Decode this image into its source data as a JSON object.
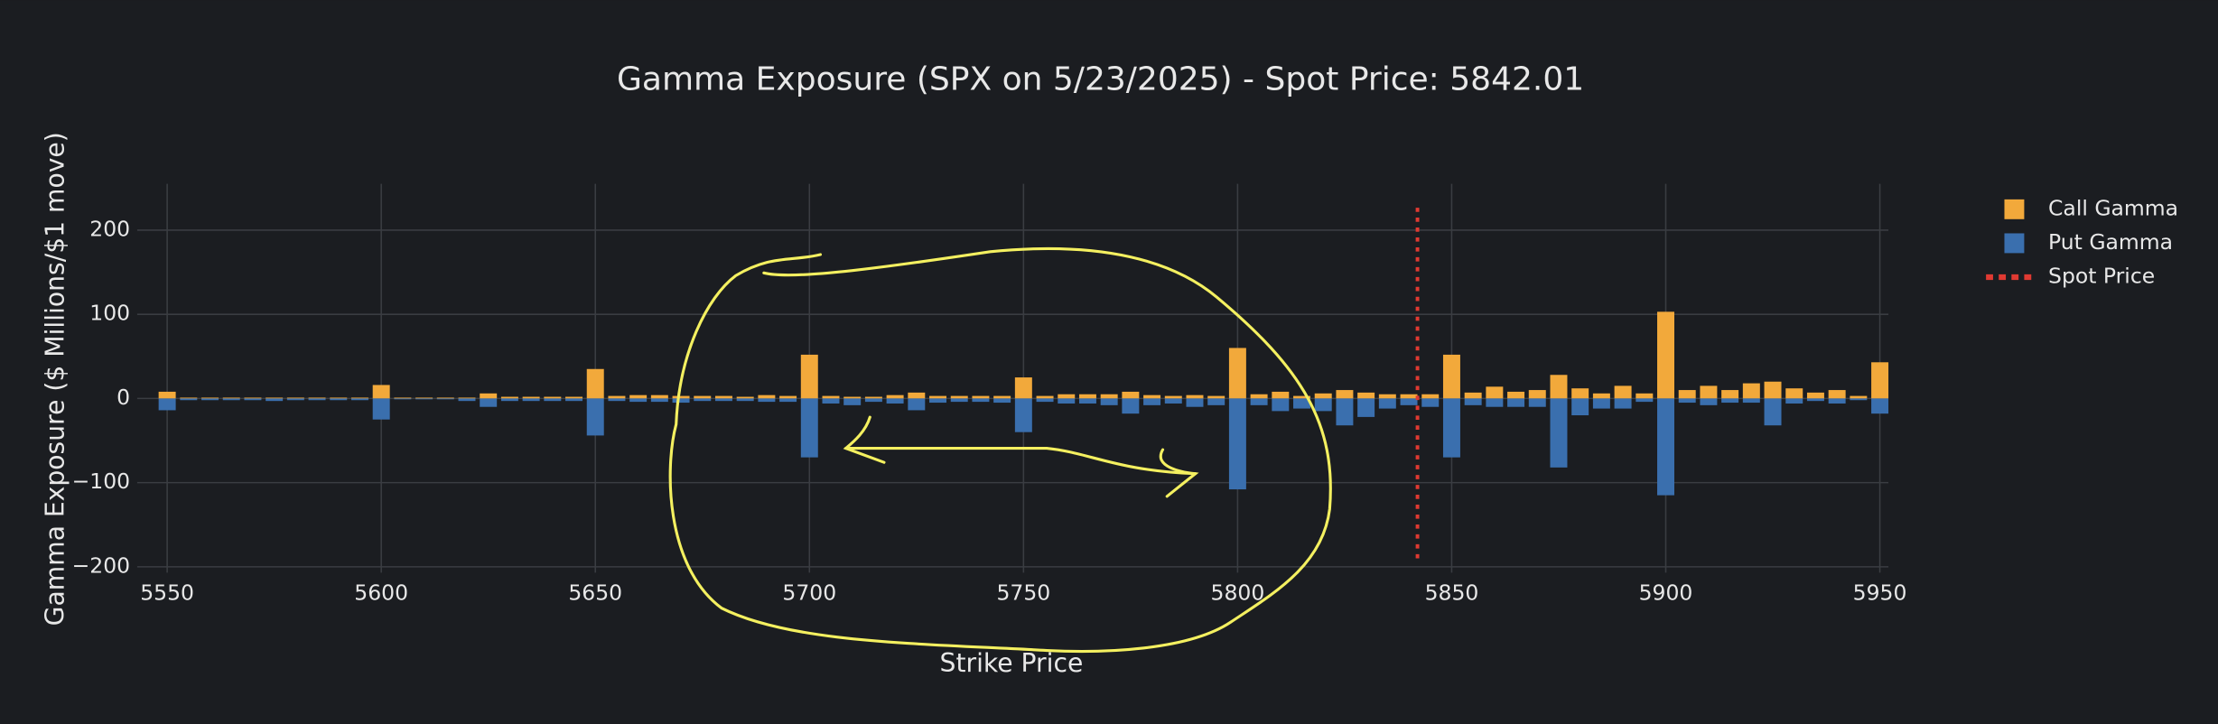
{
  "chart_data": {
    "type": "bar",
    "title": "Gamma Exposure (SPX on 5/23/2025) - Spot Price: 5842.01",
    "x_label": "Strike Price",
    "y_label": "Gamma Exposure ($ Millions/$1 move)",
    "x": [
      5550,
      5555,
      5560,
      5565,
      5570,
      5575,
      5580,
      5585,
      5590,
      5595,
      5600,
      5605,
      5610,
      5615,
      5620,
      5625,
      5630,
      5635,
      5640,
      5645,
      5650,
      5655,
      5660,
      5665,
      5670,
      5675,
      5680,
      5685,
      5690,
      5695,
      5700,
      5705,
      5710,
      5715,
      5720,
      5725,
      5730,
      5735,
      5740,
      5745,
      5750,
      5755,
      5760,
      5765,
      5770,
      5775,
      5780,
      5785,
      5790,
      5795,
      5800,
      5805,
      5810,
      5815,
      5820,
      5825,
      5830,
      5835,
      5840,
      5845,
      5850,
      5855,
      5860,
      5865,
      5870,
      5875,
      5880,
      5885,
      5890,
      5895,
      5900,
      5905,
      5910,
      5915,
      5920,
      5925,
      5930,
      5935,
      5940,
      5945,
      5950
    ],
    "series": [
      {
        "name": "Call Gamma",
        "color": "#f2a93b",
        "values": [
          8,
          1,
          1,
          1,
          1,
          1,
          1,
          1,
          1,
          1,
          16,
          1,
          1,
          1,
          1,
          6,
          2,
          2,
          2,
          2,
          35,
          3,
          4,
          4,
          3,
          3,
          3,
          2,
          4,
          3,
          52,
          3,
          2,
          2,
          4,
          7,
          3,
          3,
          3,
          3,
          25,
          3,
          5,
          5,
          5,
          8,
          4,
          3,
          4,
          3,
          60,
          5,
          8,
          3,
          6,
          10,
          7,
          5,
          5,
          5,
          52,
          7,
          14,
          8,
          10,
          28,
          12,
          6,
          15,
          6,
          103,
          10,
          15,
          10,
          18,
          20,
          12,
          7,
          10,
          3,
          43
        ]
      },
      {
        "name": "Put Gamma",
        "color": "#3a6fae",
        "values": [
          -14,
          -2,
          -2,
          -2,
          -2,
          -3,
          -2,
          -2,
          -2,
          -2,
          -25,
          -1,
          -1,
          -1,
          -3,
          -10,
          -3,
          -3,
          -3,
          -3,
          -44,
          -3,
          -4,
          -4,
          -5,
          -3,
          -3,
          -3,
          -4,
          -4,
          -70,
          -6,
          -8,
          -4,
          -6,
          -14,
          -5,
          -4,
          -4,
          -5,
          -40,
          -4,
          -6,
          -6,
          -8,
          -18,
          -8,
          -6,
          -10,
          -8,
          -108,
          -8,
          -15,
          -12,
          -15,
          -32,
          -22,
          -12,
          -8,
          -10,
          -70,
          -8,
          -10,
          -10,
          -10,
          -82,
          -20,
          -12,
          -12,
          -4,
          -115,
          -5,
          -8,
          -5,
          -5,
          -32,
          -6,
          -3,
          -6,
          -2,
          -18
        ]
      }
    ],
    "spot_line": {
      "name": "Spot Price",
      "x": 5842.01,
      "y": [
        -190,
        227
      ],
      "color": "#e03a32"
    },
    "xlim": [
      5543,
      5952
    ],
    "ylim": [
      -207,
      255
    ],
    "xticks": [
      5550,
      5600,
      5650,
      5700,
      5750,
      5800,
      5850,
      5900,
      5950
    ],
    "yticks": [
      {
        "value": -200,
        "label": "−200"
      },
      {
        "value": -100,
        "label": "−100"
      },
      0,
      100,
      200
    ],
    "grid": true,
    "legend": "right"
  }
}
